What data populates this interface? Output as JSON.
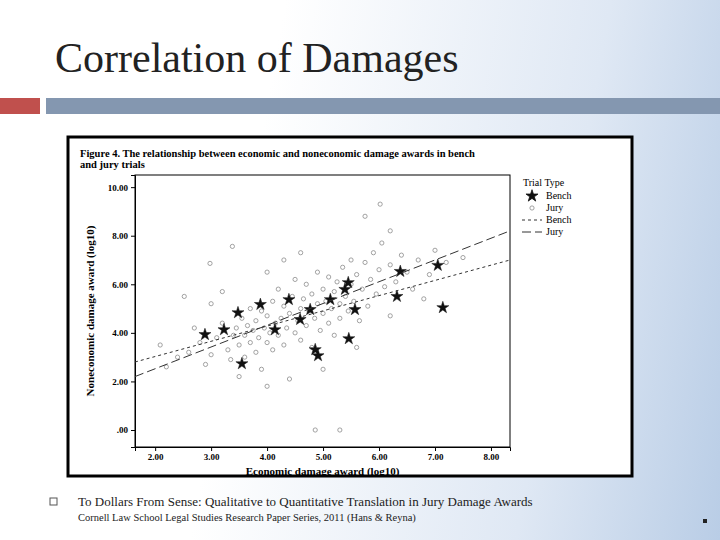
{
  "page": {
    "title": "Correlation of Damages",
    "citation": [
      "To Dollars From Sense: Qualitative to Quantitative Translation in Jury Damage Awards",
      "Cornell Law School Legal Studies Research Paper Series, 2011 (Hans & Reyna)"
    ]
  },
  "chart_data": {
    "type": "scatter",
    "title": [
      "Figure 4. The relationship between economic and noneconomic damage awards in bench",
      "and jury trials"
    ],
    "x_label": "Economic damage award (log10)",
    "y_label": "Noneconomic damage award (log10)",
    "legend_title": "Trial Type",
    "legend": "right",
    "xlim": [
      1.64,
      8.34
    ],
    "ylim": [
      -0.7,
      10.5
    ],
    "xticks": [
      {
        "value": 2,
        "label": "2.00"
      },
      {
        "value": 3,
        "label": "3.00"
      },
      {
        "value": 4,
        "label": "4.00"
      },
      {
        "value": 5,
        "label": "5.00"
      },
      {
        "value": 6,
        "label": "6.00"
      },
      {
        "value": 7,
        "label": "7.00"
      },
      {
        "value": 8,
        "label": "8.00"
      }
    ],
    "yticks": [
      {
        "value": 0,
        "label": ".00"
      },
      {
        "value": 2,
        "label": "2.00"
      },
      {
        "value": 4,
        "label": "4.00"
      },
      {
        "value": 6,
        "label": "6.00"
      },
      {
        "value": 8,
        "label": "8.00"
      },
      {
        "value": 10,
        "label": "10.00"
      }
    ],
    "series": [
      {
        "name": "Bench",
        "type": "scatter",
        "marker": "star",
        "color": "#111111",
        "x": [
          2.89,
          6.38,
          7.05,
          7.14,
          6.32,
          5.39,
          5.45,
          4.86,
          4.91,
          5.46,
          3.55,
          3.48,
          4.39,
          3.88,
          4.59,
          5.13,
          3.23,
          4.14,
          5.57,
          4.77
        ],
        "values": [
          3.93,
          6.53,
          6.78,
          5.04,
          5.5,
          5.79,
          6.07,
          3.31,
          3.06,
          3.76,
          2.73,
          4.83,
          5.37,
          5.17,
          4.55,
          5.37,
          4.13,
          4.13,
          4.96,
          4.96
        ]
      },
      {
        "name": "Jury",
        "type": "scatter",
        "marker": "circle",
        "color": "#8c8c8c",
        "x": [
          2.09,
          2.52,
          2.98,
          3.38,
          5.75,
          6.02,
          6.2,
          4.86,
          5.3,
          2.6,
          2.8,
          2.9,
          3.0,
          3.1,
          3.2,
          3.3,
          3.35,
          3.4,
          3.45,
          3.5,
          3.55,
          3.6,
          3.6,
          3.65,
          3.7,
          3.7,
          3.75,
          3.8,
          3.8,
          3.85,
          3.9,
          3.9,
          3.95,
          4.0,
          4.0,
          4.05,
          4.1,
          4.1,
          4.15,
          4.2,
          4.2,
          4.25,
          4.3,
          4.3,
          4.35,
          4.4,
          4.4,
          4.45,
          4.5,
          4.5,
          4.55,
          4.6,
          4.6,
          4.65,
          4.7,
          4.7,
          4.75,
          4.8,
          4.8,
          4.85,
          4.9,
          4.9,
          4.95,
          5.0,
          5.0,
          5.05,
          5.1,
          5.1,
          5.15,
          5.2,
          5.2,
          5.25,
          5.3,
          5.3,
          5.35,
          5.4,
          5.45,
          5.5,
          5.5,
          5.55,
          5.6,
          5.65,
          5.7,
          5.75,
          5.8,
          5.85,
          5.9,
          5.95,
          6.0,
          6.05,
          6.1,
          6.2,
          6.3,
          6.4,
          6.5,
          6.6,
          6.7,
          6.9,
          7.0,
          7.2,
          7.5,
          3.0,
          2.7,
          3.2,
          4.0,
          4.3,
          4.6,
          3.5,
          2.4,
          2.2,
          4.0,
          5.0,
          5.6,
          6.2,
          6.8
        ],
        "values": [
          3.5,
          5.5,
          6.86,
          7.56,
          8.8,
          9.3,
          8.2,
          0,
          0,
          3.2,
          3.6,
          2.7,
          3.1,
          3.8,
          4.4,
          3.3,
          2.9,
          3.9,
          4.2,
          3.5,
          4.6,
          3.0,
          3.9,
          4.3,
          3.6,
          5.0,
          4.1,
          3.2,
          4.5,
          3.8,
          4.9,
          2.5,
          4.2,
          3.6,
          4.7,
          4.0,
          5.3,
          3.3,
          4.4,
          3.9,
          5.8,
          4.6,
          3.5,
          5.1,
          4.2,
          4.8,
          2.1,
          5.5,
          4.0,
          6.2,
          4.5,
          5.0,
          3.7,
          5.4,
          4.3,
          6.0,
          4.9,
          5.6,
          3.4,
          4.6,
          5.2,
          6.5,
          4.1,
          5.8,
          4.8,
          5.3,
          6.3,
          4.4,
          5.0,
          5.7,
          3.9,
          6.1,
          5.2,
          4.6,
          6.7,
          5.5,
          4.9,
          6.0,
          7.0,
          5.3,
          6.4,
          4.5,
          5.8,
          6.9,
          5.1,
          6.2,
          7.3,
          5.6,
          6.6,
          7.7,
          5.9,
          6.8,
          6.1,
          7.2,
          6.5,
          5.8,
          7.0,
          6.4,
          7.4,
          6.9,
          7.1,
          5.2,
          4.2,
          5.7,
          6.5,
          7.0,
          7.3,
          2.2,
          3.0,
          2.6,
          1.8,
          2.5,
          3.4,
          4.7,
          5.4
        ]
      },
      {
        "name": "Bench",
        "type": "line",
        "line_style": "dashed",
        "color": "#333333",
        "x": [
          1.64,
          8.34
        ],
        "values": [
          2.8,
          7.0
        ]
      },
      {
        "name": "Jury",
        "type": "line",
        "line_style": "longdash",
        "color": "#333333",
        "x": [
          1.64,
          8.34
        ],
        "values": [
          2.2,
          8.2
        ]
      }
    ]
  }
}
